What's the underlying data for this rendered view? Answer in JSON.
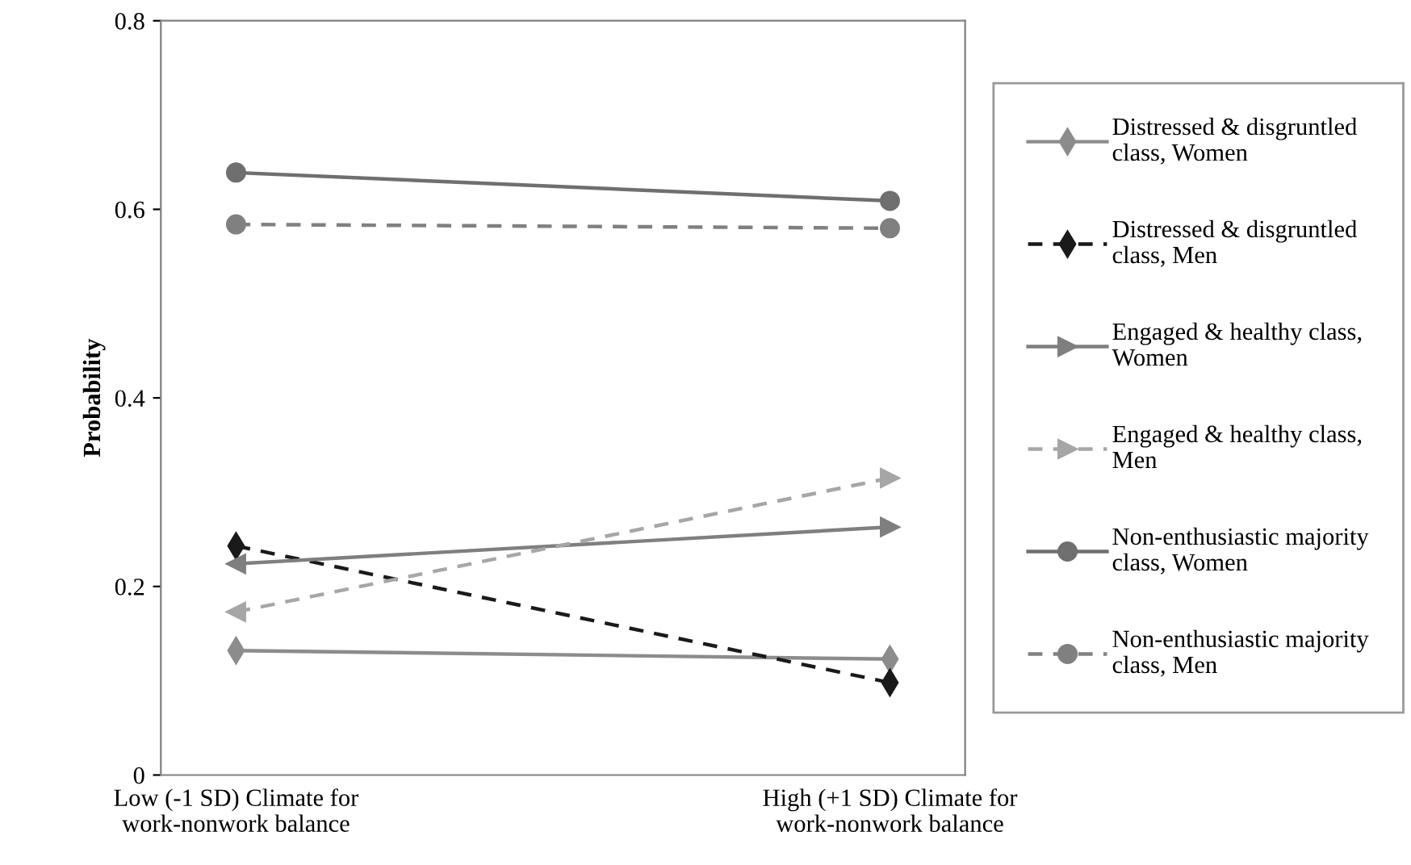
{
  "chart_data": {
    "type": "line",
    "ylabel": "Probability",
    "categories": [
      "Low (-1 SD) Climate for work-nonwork balance",
      "High (+1 SD) Climate for work-nonwork balance"
    ],
    "ylim": [
      0,
      0.8
    ],
    "yticks": [
      0,
      0.2,
      0.4,
      0.6,
      0.8
    ],
    "grid": false,
    "legend": "right",
    "series": [
      {
        "name": "Distressed & disgruntled class, Women",
        "color": "#8c8c8c",
        "values": [
          0.132,
          0.123
        ],
        "marker": "diamond",
        "line_style": "solid"
      },
      {
        "name": "Distressed & disgruntled class, Men",
        "color": "#1a1a1a",
        "values": [
          0.243,
          0.098
        ],
        "marker": "diamond",
        "line_style": "dashed"
      },
      {
        "name": "Engaged & healthy class, Women",
        "color": "#7f7f7f",
        "values": [
          0.224,
          0.263
        ],
        "marker": "triangle",
        "line_style": "solid"
      },
      {
        "name": "Engaged & healthy class, Men",
        "color": "#a6a6a6",
        "values": [
          0.173,
          0.315
        ],
        "marker": "triangle",
        "line_style": "dashed"
      },
      {
        "name": "Non-enthusiastic majority class, Women",
        "color": "#6f6f6f",
        "values": [
          0.639,
          0.609
        ],
        "marker": "circle",
        "line_style": "solid"
      },
      {
        "name": "Non-enthusiastic majority class, Men",
        "color": "#808080",
        "values": [
          0.584,
          0.58
        ],
        "marker": "circle",
        "line_style": "dashed"
      }
    ]
  }
}
